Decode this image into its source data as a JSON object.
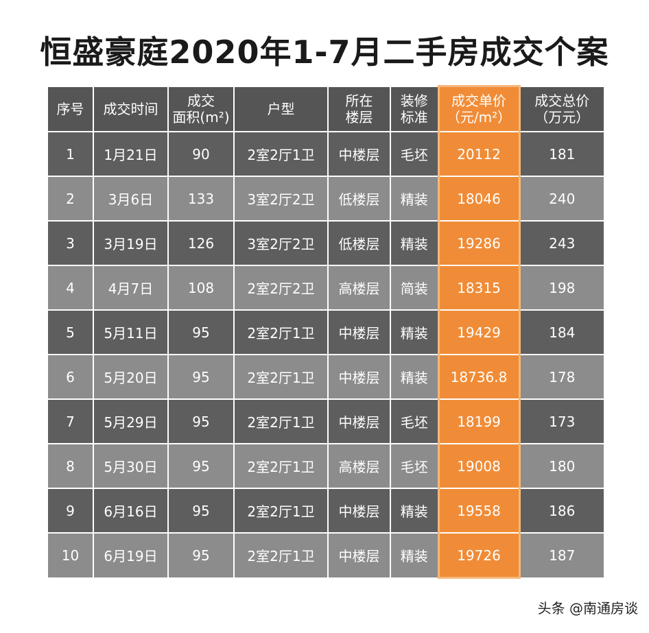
{
  "title": "恒盛豪庭2020年1-7月二手房成交个案",
  "columns": [
    {
      "line1": "序号",
      "line2": ""
    },
    {
      "line1": "成交时间",
      "line2": ""
    },
    {
      "line1": "成交",
      "line2": "面积(m²)"
    },
    {
      "line1": "户型",
      "line2": ""
    },
    {
      "line1": "所在",
      "line2": "楼层"
    },
    {
      "line1": "装修",
      "line2": "标准"
    },
    {
      "line1": "成交单价",
      "line2": "（元/m²）"
    },
    {
      "line1": "成交总价",
      "line2": "（万元）"
    }
  ],
  "rows": [
    [
      "1",
      "1月21日",
      "90",
      "2室2厅1卫",
      "中楼层",
      "毛坯",
      "20112",
      "181"
    ],
    [
      "2",
      "3月6日",
      "133",
      "3室2厅2卫",
      "低楼层",
      "精装",
      "18046",
      "240"
    ],
    [
      "3",
      "3月19日",
      "126",
      "3室2厅2卫",
      "低楼层",
      "精装",
      "19286",
      "243"
    ],
    [
      "4",
      "4月7日",
      "108",
      "2室2厅2卫",
      "高楼层",
      "简装",
      "18315",
      "198"
    ],
    [
      "5",
      "5月11日",
      "95",
      "2室2厅1卫",
      "中楼层",
      "精装",
      "19429",
      "184"
    ],
    [
      "6",
      "5月20日",
      "95",
      "2室2厅1卫",
      "中楼层",
      "精装",
      "18736.8",
      "178"
    ],
    [
      "7",
      "5月29日",
      "95",
      "2室2厅1卫",
      "中楼层",
      "毛坯",
      "18199",
      "173"
    ],
    [
      "8",
      "5月30日",
      "95",
      "2室2厅1卫",
      "高楼层",
      "毛坯",
      "19008",
      "180"
    ],
    [
      "9",
      "6月16日",
      "95",
      "2室2厅1卫",
      "中楼层",
      "精装",
      "19558",
      "186"
    ],
    [
      "10",
      "6月19日",
      "95",
      "2室2厅1卫",
      "中楼层",
      "精装",
      "19726",
      "187"
    ]
  ],
  "watermark": "头条 @南通房谈",
  "colors": {
    "header_bg": "#555555",
    "row_dark": "#5e5e5e",
    "row_light": "#8c8c8c",
    "highlight": "#f08c37"
  }
}
